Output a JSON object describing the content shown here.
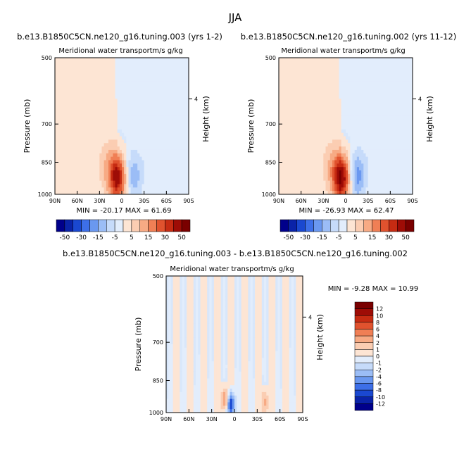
{
  "page_title": "JJA",
  "chart_data": [
    {
      "type": "heatmap",
      "title": "b.e13.B1850C5CN.ne120_g16.tuning.003 (yrs 1-2)",
      "subtitle": "Meridional water transport",
      "units": "m/s g/kg",
      "ylabel": "Pressure (mb)",
      "ylabel_right": "Height (km)",
      "x_ticks": [
        "90N",
        "60N",
        "30N",
        "0",
        "30S",
        "60S",
        "90S"
      ],
      "y_ticks": [
        "500",
        "700",
        "850",
        "1000"
      ],
      "y_right_ticks": [
        "4"
      ],
      "stats": "MIN = -20.17   MAX = 61.69",
      "colorbar_levels": [
        "-50",
        "-30",
        "-15",
        "-5",
        "5",
        "15",
        "30",
        "50"
      ],
      "features": [
        {
          "lat": 5,
          "p": 920,
          "value": 50
        },
        {
          "lat": 20,
          "p": 860,
          "value": 10
        },
        {
          "lat": -15,
          "p": 910,
          "value": -20
        },
        {
          "lat": -40,
          "p": 800,
          "value": -5
        }
      ]
    },
    {
      "type": "heatmap",
      "title": "b.e13.B1850C5CN.ne120_g16.tuning.002 (yrs 11-12)",
      "subtitle": "Meridional water transport",
      "units": "m/s g/kg",
      "ylabel": "Pressure (mb)",
      "ylabel_right": "Height (km)",
      "x_ticks": [
        "90N",
        "60N",
        "30N",
        "0",
        "30S",
        "60S",
        "90S"
      ],
      "y_ticks": [
        "500",
        "700",
        "850",
        "1000"
      ],
      "y_right_ticks": [
        "4"
      ],
      "stats": "MIN = -26.93   MAX = 62.47",
      "colorbar_levels": [
        "-50",
        "-30",
        "-15",
        "-5",
        "5",
        "15",
        "30",
        "50"
      ],
      "features": [
        {
          "lat": 5,
          "p": 920,
          "value": 55
        },
        {
          "lat": 20,
          "p": 860,
          "value": 10
        },
        {
          "lat": -15,
          "p": 910,
          "value": -25
        },
        {
          "lat": -40,
          "p": 800,
          "value": -5
        }
      ]
    },
    {
      "type": "heatmap",
      "title": "b.e13.B1850C5CN.ne120_g16.tuning.003 - b.e13.B1850C5CN.ne120_g16.tuning.002",
      "subtitle": "Meridional water transport",
      "units": "m/s g/kg",
      "ylabel": "Pressure (mb)",
      "ylabel_right": "Height (km)",
      "x_ticks": [
        "90N",
        "60N",
        "30N",
        "0",
        "30S",
        "60S",
        "90S"
      ],
      "y_ticks": [
        "500",
        "700",
        "850",
        "1000"
      ],
      "y_right_ticks": [
        "4"
      ],
      "stats": "MIN = -9.28   MAX = 10.99",
      "colorbar_levels": [
        "12",
        "10",
        "8",
        "6",
        "4",
        "2",
        "1",
        "0",
        "-1",
        "-2",
        "-4",
        "-6",
        "-8",
        "-10",
        "-12"
      ],
      "features": [
        {
          "lat": 5,
          "p": 960,
          "value": -10
        },
        {
          "lat": 12,
          "p": 940,
          "value": 6
        },
        {
          "lat": -40,
          "p": 950,
          "value": 4
        }
      ]
    }
  ],
  "colors": {
    "diverging": [
      "#00008b",
      "#0a23a8",
      "#1a48d0",
      "#3d6fe8",
      "#6a98f0",
      "#9bbdf6",
      "#c6dbfa",
      "#e2edfc",
      "#fde5d4",
      "#fbcdb2",
      "#f7aa84",
      "#f07f55",
      "#e0522e",
      "#c62b12",
      "#9e0c06",
      "#7a0000"
    ],
    "neutral_pos": "#fde5d4",
    "neutral_neg": "#d8e7fb"
  }
}
